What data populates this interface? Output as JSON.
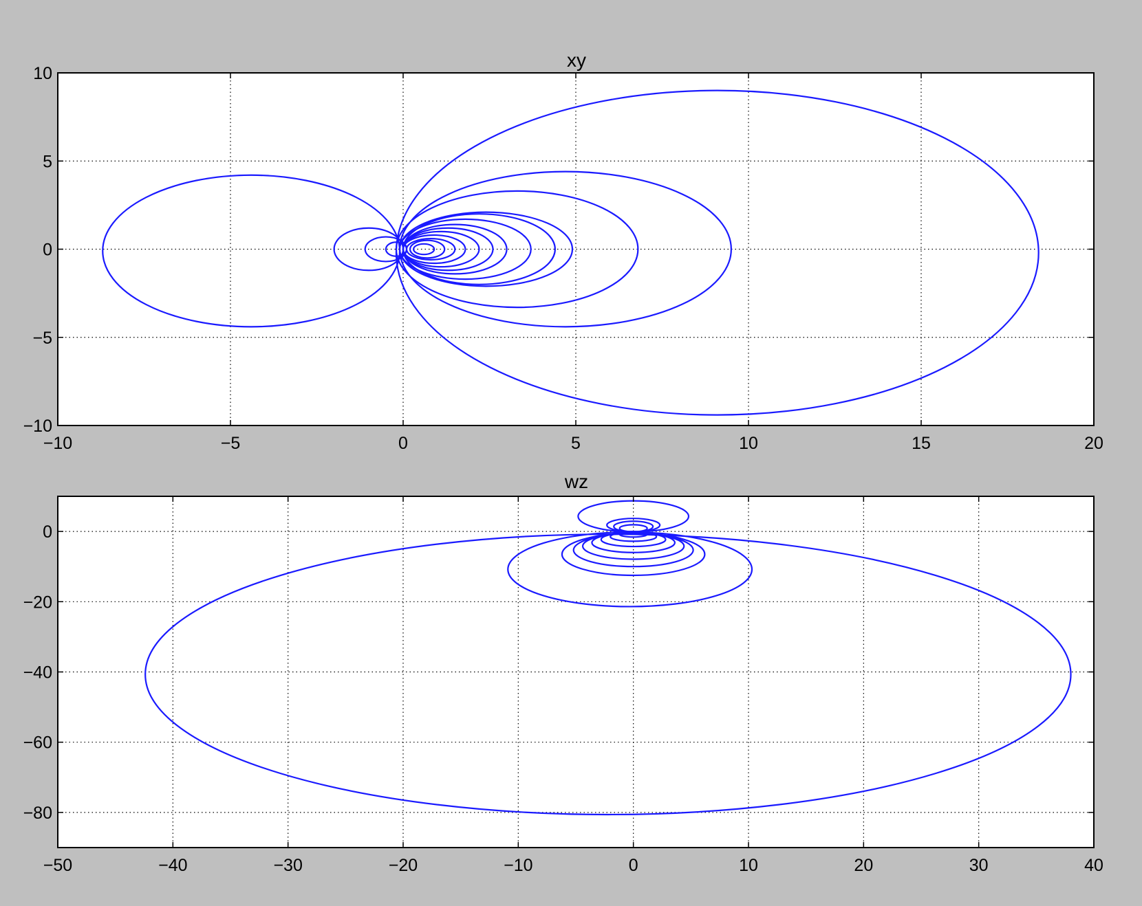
{
  "figure": {
    "background": "#bfbfbf",
    "line_color": "#1a1aff"
  },
  "chart_data": [
    {
      "type": "line",
      "title": "xy",
      "xlabel": "",
      "ylabel": "",
      "xlim": [
        -10,
        20
      ],
      "ylim": [
        -10,
        10
      ],
      "xticks": [
        -10,
        -5,
        0,
        5,
        10,
        15,
        20
      ],
      "yticks": [
        -10,
        -5,
        0,
        5,
        10
      ],
      "xtick_labels": [
        "−10",
        "−5",
        "0",
        "5",
        "10",
        "15",
        "20"
      ],
      "ytick_labels": [
        "−10",
        "−5",
        "0",
        "5",
        "10"
      ],
      "grid": true,
      "series": [
        {
          "loops": [
            {
              "cx": 9.1,
              "cy": -0.2,
              "rx": 9.3,
              "ry": 9.2
            },
            {
              "cx": 4.7,
              "cy": 0.0,
              "rx": 4.8,
              "ry": 4.4
            },
            {
              "cx": 3.3,
              "cy": 0.0,
              "rx": 3.5,
              "ry": 3.3
            },
            {
              "cx": 2.4,
              "cy": 0.0,
              "rx": 2.5,
              "ry": 2.1
            },
            {
              "cx": 2.2,
              "cy": 0.0,
              "rx": 2.2,
              "ry": 2.0
            },
            {
              "cx": 1.8,
              "cy": 0.0,
              "rx": 1.9,
              "ry": 1.7
            },
            {
              "cx": 1.5,
              "cy": 0.0,
              "rx": 1.5,
              "ry": 1.4
            },
            {
              "cx": 1.3,
              "cy": 0.0,
              "rx": 1.3,
              "ry": 1.2
            },
            {
              "cx": 1.1,
              "cy": 0.0,
              "rx": 1.1,
              "ry": 1.0
            },
            {
              "cx": 0.9,
              "cy": 0.0,
              "rx": 0.9,
              "ry": 0.8
            },
            {
              "cx": 0.8,
              "cy": 0.0,
              "rx": 0.7,
              "ry": 0.6
            },
            {
              "cx": 0.7,
              "cy": 0.0,
              "rx": 0.5,
              "ry": 0.5
            },
            {
              "cx": 0.6,
              "cy": 0.0,
              "rx": 0.3,
              "ry": 0.3
            },
            {
              "cx": -4.4,
              "cy": -0.1,
              "rx": 4.3,
              "ry": 4.3
            },
            {
              "cx": -1.0,
              "cy": 0.0,
              "rx": 1.0,
              "ry": 1.2
            },
            {
              "cx": -0.5,
              "cy": 0.0,
              "rx": 0.6,
              "ry": 0.7
            },
            {
              "cx": -0.2,
              "cy": 0.0,
              "rx": 0.3,
              "ry": 0.4
            }
          ]
        }
      ]
    },
    {
      "type": "line",
      "title": "wz",
      "xlabel": "",
      "ylabel": "",
      "xlim": [
        -50,
        40
      ],
      "ylim": [
        -90,
        10
      ],
      "xticks": [
        -50,
        -40,
        -30,
        -20,
        -10,
        0,
        10,
        20,
        30,
        40
      ],
      "yticks": [
        -80,
        -60,
        -40,
        -20,
        0
      ],
      "xtick_labels": [
        "−50",
        "−40",
        "−30",
        "−20",
        "−10",
        "0",
        "10",
        "20",
        "30",
        "40"
      ],
      "ytick_labels": [
        "−80",
        "−60",
        "−40",
        "−20",
        "0"
      ],
      "grid": true,
      "series": [
        {
          "loops": [
            {
              "cx": -2.2,
              "cy": -40.7,
              "rx": 40.2,
              "ry": 39.9
            },
            {
              "cx": -0.3,
              "cy": -10.8,
              "rx": 10.6,
              "ry": 10.6
            },
            {
              "cx": 0.0,
              "cy": -6.5,
              "rx": 6.2,
              "ry": 6.0
            },
            {
              "cx": 0.0,
              "cy": -5.3,
              "rx": 5.2,
              "ry": 4.7
            },
            {
              "cx": 0.0,
              "cy": -4.2,
              "rx": 4.4,
              "ry": 3.7
            },
            {
              "cx": 0.0,
              "cy": -3.2,
              "rx": 3.6,
              "ry": 2.8
            },
            {
              "cx": 0.0,
              "cy": -2.3,
              "rx": 2.8,
              "ry": 2.0
            },
            {
              "cx": 0.0,
              "cy": -1.5,
              "rx": 2.0,
              "ry": 1.3
            },
            {
              "cx": 0.0,
              "cy": -0.8,
              "rx": 1.2,
              "ry": 0.8
            },
            {
              "cx": 0.0,
              "cy": 4.3,
              "rx": 4.8,
              "ry": 4.4
            },
            {
              "cx": 0.0,
              "cy": 1.8,
              "rx": 2.3,
              "ry": 1.9
            },
            {
              "cx": 0.0,
              "cy": 1.4,
              "rx": 1.7,
              "ry": 1.5
            },
            {
              "cx": 0.0,
              "cy": 0.9,
              "rx": 1.2,
              "ry": 1.0
            }
          ]
        }
      ]
    }
  ]
}
